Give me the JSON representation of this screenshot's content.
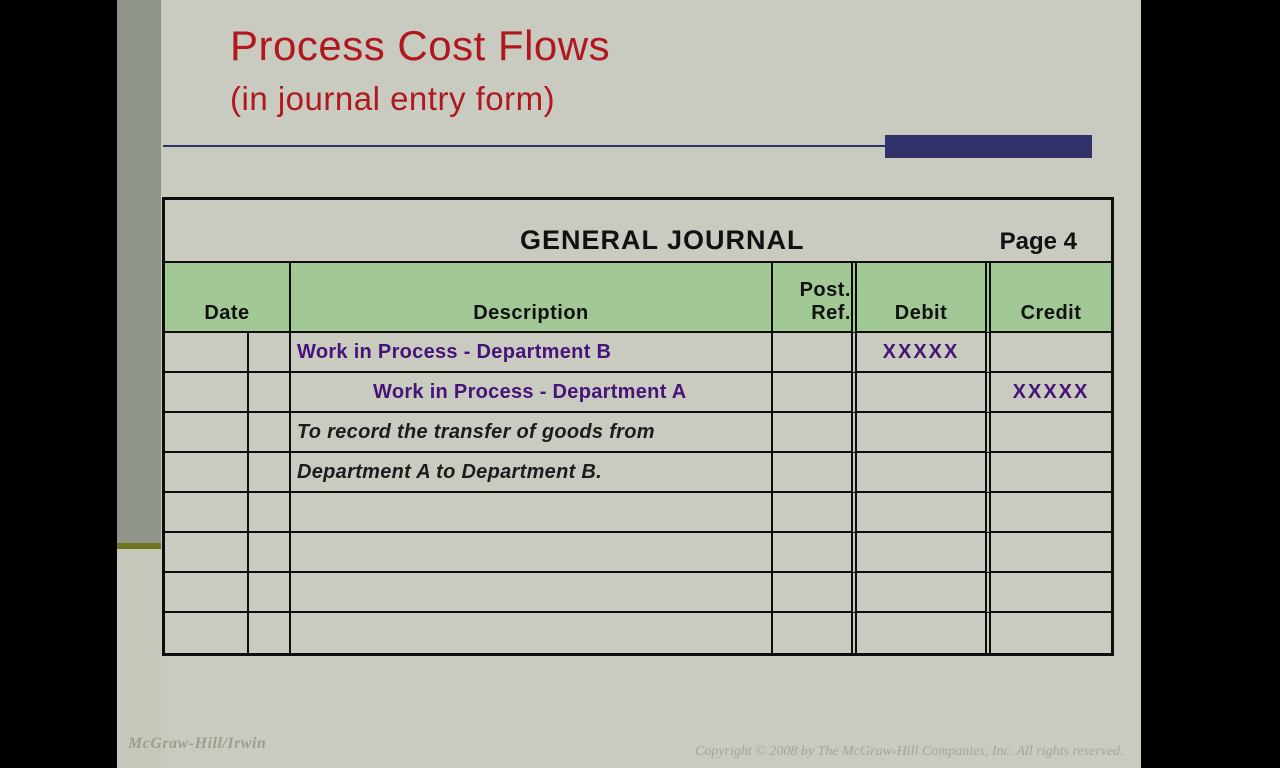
{
  "slide": {
    "title": "Process Cost Flows",
    "subtitle": "(in journal entry form)"
  },
  "journal": {
    "title": "GENERAL JOURNAL",
    "page_label": "Page 4",
    "headers": {
      "date": "Date",
      "description": "Description",
      "post_ref_line1": "Post.",
      "post_ref_line2": "Ref.",
      "debit": "Debit",
      "credit": "Credit"
    },
    "rows": [
      {
        "description": "Work in Process - Department B",
        "debit": "XXXXX",
        "credit": ""
      },
      {
        "description": "Work in Process - Department A",
        "debit": "",
        "credit": "XXXXX"
      },
      {
        "description": "To record the transfer of goods from",
        "debit": "",
        "credit": ""
      },
      {
        "description": "Department A to Department B.",
        "debit": "",
        "credit": ""
      },
      {
        "description": "",
        "debit": "",
        "credit": ""
      },
      {
        "description": "",
        "debit": "",
        "credit": ""
      },
      {
        "description": "",
        "debit": "",
        "credit": ""
      },
      {
        "description": "",
        "debit": "",
        "credit": ""
      }
    ]
  },
  "footer": {
    "left": "McGraw-Hill/Irwin",
    "right": "Copyright © 2008 by The McGraw-Hill Companies, Inc. All rights reserved."
  },
  "colors": {
    "page_background": "#000000",
    "slide_background": "#c9cbc1",
    "band_dark": "#8f9489",
    "band_olive": "#6f751f",
    "header_green": "#a2c896",
    "title_red": "#b0181e",
    "entry_purple": "#461478",
    "accent_navy": "#32326b",
    "table_border": "#0d0d0d",
    "footer_text": "#99a08f"
  }
}
